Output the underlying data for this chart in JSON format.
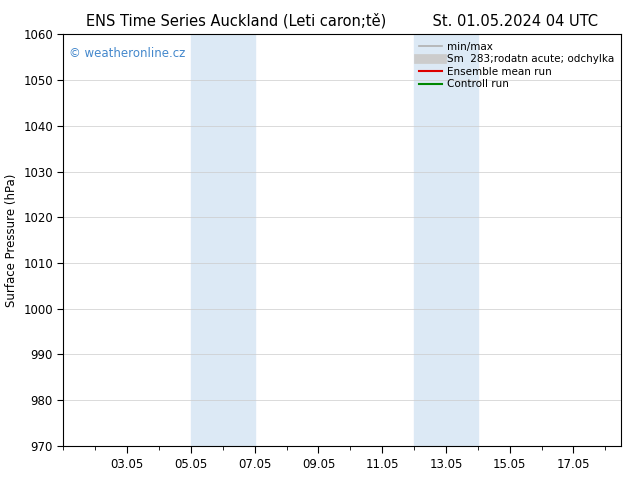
{
  "title_left": "ENS Time Series Auckland (Leti caron;tě)",
  "title_right": "St. 01.05.2024 04 UTC",
  "ylabel": "Surface Pressure (hPa)",
  "ylim": [
    970,
    1060
  ],
  "yticks": [
    970,
    980,
    990,
    1000,
    1010,
    1020,
    1030,
    1040,
    1050,
    1060
  ],
  "xlim": [
    0.0,
    17.5
  ],
  "xtick_labels": [
    "03.05",
    "05.05",
    "07.05",
    "09.05",
    "11.05",
    "13.05",
    "15.05",
    "17.05"
  ],
  "xtick_positions": [
    2,
    4,
    6,
    8,
    10,
    12,
    14,
    16
  ],
  "shaded_regions": [
    {
      "start": 4.0,
      "end": 6.0
    },
    {
      "start": 11.0,
      "end": 13.0
    }
  ],
  "shade_color": "#dce9f5",
  "watermark_text": "© weatheronline.cz",
  "watermark_color": "#4488cc",
  "legend_entries": [
    {
      "label": "min/max",
      "color": "#b0b0b0",
      "lw": 1.2,
      "type": "line"
    },
    {
      "label": "Sm  283;rodatn acute; odchylka",
      "color": "#cccccc",
      "lw": 7,
      "type": "line"
    },
    {
      "label": "Ensemble mean run",
      "color": "#dd0000",
      "lw": 1.5,
      "type": "line"
    },
    {
      "label": "Controll run",
      "color": "#008800",
      "lw": 1.5,
      "type": "line"
    }
  ],
  "bg_color": "#ffffff",
  "grid_color": "#cccccc",
  "title_fontsize": 10.5,
  "tick_fontsize": 8.5,
  "ylabel_fontsize": 8.5,
  "legend_fontsize": 7.5
}
